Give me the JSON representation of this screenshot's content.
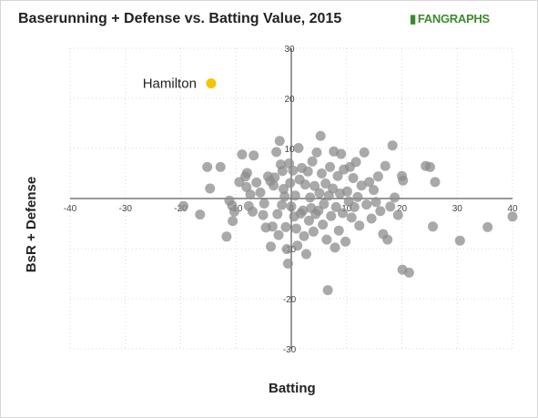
{
  "logo_text": "FANGRAPHS",
  "chart_data": {
    "type": "scatter",
    "title": "Baserunning + Defense vs. Batting Value, 2015",
    "xlabel": "Batting",
    "ylabel": "BsR + Defense",
    "xlim": [
      -40,
      40
    ],
    "ylim": [
      -30,
      30
    ],
    "x_ticks": [
      "-40",
      "-30",
      "-20",
      "-10",
      "0",
      "10",
      "20",
      "30",
      "40"
    ],
    "y_ticks": [
      "30",
      "20",
      "10",
      "0",
      "-10",
      "-20",
      "-30"
    ],
    "grid": true,
    "colors": {
      "points": "#8c8c8c",
      "highlight": "#f5c400",
      "grid": "#d9d9d9",
      "axis": "#333333"
    },
    "highlight": {
      "label": "Hamilton",
      "x": -14.5,
      "y": 23.0
    },
    "points": [
      [
        -19.5,
        -1.5
      ],
      [
        -16.5,
        -3.2
      ],
      [
        -15.2,
        6.3
      ],
      [
        -14.7,
        2.0
      ],
      [
        -12.8,
        6.3
      ],
      [
        -11.7,
        -7.6
      ],
      [
        -11.2,
        -0.4
      ],
      [
        -10.7,
        -1.4
      ],
      [
        -10.3,
        -2.6
      ],
      [
        -10.6,
        -4.5
      ],
      [
        -9.4,
        3.3
      ],
      [
        -8.9,
        8.8
      ],
      [
        -8.3,
        4.4
      ],
      [
        -8.0,
        5.1
      ],
      [
        -8.1,
        2.3
      ],
      [
        -7.7,
        -1.5
      ],
      [
        -7.4,
        0.8
      ],
      [
        -7.0,
        -2.6
      ],
      [
        -6.8,
        8.6
      ],
      [
        -6.3,
        3.2
      ],
      [
        -5.6,
        1.2
      ],
      [
        -5.1,
        -3.3
      ],
      [
        -4.9,
        -1.0
      ],
      [
        -4.6,
        -5.8
      ],
      [
        -4.2,
        4.4
      ],
      [
        -3.8,
        3.5
      ],
      [
        -3.7,
        -9.6
      ],
      [
        -3.4,
        -5.6
      ],
      [
        -3.2,
        2.6
      ],
      [
        -3.0,
        4.2
      ],
      [
        -2.7,
        9.3
      ],
      [
        -2.5,
        -3.1
      ],
      [
        -2.3,
        -7.3
      ],
      [
        -2.1,
        11.5
      ],
      [
        -1.9,
        6.8
      ],
      [
        -1.7,
        -1.3
      ],
      [
        -1.6,
        5.5
      ],
      [
        -1.4,
        1.9
      ],
      [
        -1.2,
        0.4
      ],
      [
        -1.0,
        -5.7
      ],
      [
        -0.8,
        -10.1
      ],
      [
        -0.6,
        -13.0
      ],
      [
        -0.4,
        7.0
      ],
      [
        -0.2,
        3.1
      ],
      [
        0.0,
        -1.6
      ],
      [
        0.3,
        5.6
      ],
      [
        0.5,
        -3.6
      ],
      [
        0.7,
        0.6
      ],
      [
        0.9,
        -6.0
      ],
      [
        1.1,
        -9.4
      ],
      [
        1.3,
        10.1
      ],
      [
        1.5,
        3.8
      ],
      [
        1.7,
        -3.0
      ],
      [
        1.9,
        6.1
      ],
      [
        2.1,
        -2.4
      ],
      [
        2.3,
        -7.5
      ],
      [
        2.5,
        2.8
      ],
      [
        2.7,
        -11.1
      ],
      [
        3.0,
        5.4
      ],
      [
        3.2,
        -4.4
      ],
      [
        3.4,
        0.2
      ],
      [
        3.6,
        -1.9
      ],
      [
        3.8,
        7.4
      ],
      [
        4.0,
        -6.6
      ],
      [
        4.2,
        2.5
      ],
      [
        4.4,
        -3.1
      ],
      [
        4.6,
        9.2
      ],
      [
        4.9,
        -2.4
      ],
      [
        5.1,
        1.1
      ],
      [
        5.3,
        12.5
      ],
      [
        5.5,
        5.0
      ],
      [
        5.7,
        -5.2
      ],
      [
        5.9,
        -1.1
      ],
      [
        6.2,
        3.0
      ],
      [
        6.4,
        -8.2
      ],
      [
        6.6,
        -18.3
      ],
      [
        6.8,
        0.6
      ],
      [
        7.0,
        6.3
      ],
      [
        7.2,
        -3.5
      ],
      [
        7.5,
        2.0
      ],
      [
        7.7,
        9.4
      ],
      [
        7.9,
        -9.8
      ],
      [
        8.1,
        -1.7
      ],
      [
        8.4,
        4.5
      ],
      [
        8.6,
        -6.4
      ],
      [
        8.8,
        1.0
      ],
      [
        9.0,
        8.9
      ],
      [
        9.3,
        -2.9
      ],
      [
        9.5,
        5.8
      ],
      [
        9.8,
        -8.6
      ],
      [
        10.1,
        1.4
      ],
      [
        10.4,
        -0.6
      ],
      [
        10.6,
        6.3
      ],
      [
        10.9,
        -3.8
      ],
      [
        11.2,
        4.1
      ],
      [
        11.4,
        -1.7
      ],
      [
        11.7,
        7.3
      ],
      [
        12.0,
        0.3
      ],
      [
        12.3,
        -5.4
      ],
      [
        12.7,
        2.6
      ],
      [
        13.2,
        9.2
      ],
      [
        13.6,
        -1.2
      ],
      [
        14.1,
        3.3
      ],
      [
        14.5,
        -4.0
      ],
      [
        14.9,
        1.7
      ],
      [
        15.3,
        -0.7
      ],
      [
        15.7,
        4.4
      ],
      [
        16.1,
        -2.5
      ],
      [
        16.6,
        -7.1
      ],
      [
        17.0,
        6.5
      ],
      [
        17.4,
        -8.2
      ],
      [
        17.9,
        -1.6
      ],
      [
        18.3,
        10.6
      ],
      [
        18.7,
        0.2
      ],
      [
        19.3,
        -3.3
      ],
      [
        20.0,
        4.5
      ],
      [
        20.2,
        3.6
      ],
      [
        20.1,
        -14.2
      ],
      [
        21.3,
        -14.8
      ],
      [
        24.3,
        6.5
      ],
      [
        25.1,
        6.3
      ],
      [
        25.6,
        -5.6
      ],
      [
        26.0,
        3.3
      ],
      [
        30.5,
        -8.4
      ],
      [
        35.5,
        -5.7
      ],
      [
        40.0,
        -3.6
      ]
    ]
  }
}
